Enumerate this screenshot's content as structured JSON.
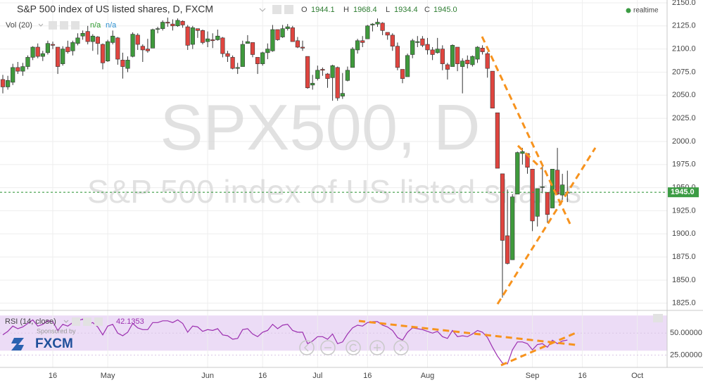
{
  "chart_data": [
    {
      "type": "candlestick",
      "title": "S&P 500 index of US listed shares, D, FXCM",
      "ohlc_names": [
        "O",
        "H",
        "L",
        "C"
      ],
      "volume_legend": {
        "label": "Vol (20)",
        "values": [
          "n/a",
          "n/a"
        ]
      },
      "status": "realtime",
      "watermark": [
        "SPX500, D",
        "S&P 500 index of US listed shares"
      ],
      "sponsor": {
        "label": "Sponsored by",
        "brand": "FXCM"
      },
      "categories": [
        null,
        null,
        null,
        null,
        null,
        null,
        null,
        null,
        null,
        null,
        "16",
        null,
        null,
        null,
        null,
        null,
        null,
        null,
        null,
        null,
        null,
        "May",
        null,
        null,
        null,
        null,
        null,
        null,
        null,
        null,
        null,
        null,
        null,
        null,
        null,
        null,
        null,
        null,
        null,
        null,
        null,
        "Jun",
        null,
        null,
        null,
        null,
        null,
        null,
        null,
        null,
        null,
        null,
        "16",
        null,
        null,
        null,
        null,
        null,
        null,
        null,
        null,
        null,
        null,
        "Jul",
        null,
        null,
        null,
        null,
        null,
        null,
        null,
        null,
        null,
        "16",
        null,
        null,
        null,
        null,
        null,
        null,
        null,
        null,
        null,
        null,
        null,
        "Aug",
        null,
        null,
        null,
        null,
        null,
        null,
        null,
        null,
        null,
        null,
        null,
        null,
        null,
        null,
        null,
        null,
        null,
        null,
        null,
        null,
        "Sep",
        null,
        null,
        null,
        null,
        null,
        null,
        null,
        null,
        null,
        "16",
        null,
        null,
        null,
        null,
        null,
        null,
        null,
        null,
        null,
        null,
        "Oct",
        null,
        null,
        null,
        null,
        null
      ],
      "open": [
        2067,
        2059,
        2064,
        2080,
        2076,
        2081,
        2091,
        2102,
        2092,
        2096,
        2105,
        2102,
        2084,
        2102,
        2098,
        2106,
        2114,
        2119,
        2108,
        2113,
        2105,
        2087,
        2107,
        2112,
        2088,
        2079,
        2092,
        2115,
        2103,
        2100,
        2101,
        2122,
        2122,
        2129,
        2127,
        2125,
        2130,
        2124,
        2105,
        2122,
        2120,
        2108,
        2110,
        2110,
        2112,
        2095,
        2091,
        2079,
        2081,
        2106,
        2107,
        2091,
        2084,
        2096,
        2098,
        2121,
        2113,
        2122,
        2123,
        2109,
        2102,
        2092,
        2061,
        2068,
        2078,
        2073,
        2069,
        2080,
        2049,
        2066,
        2080,
        2099,
        2109,
        2111,
        2126,
        2127,
        2128,
        2118,
        2115,
        2103,
        2078,
        2070,
        2094,
        2107,
        2111,
        2105,
        2099,
        2096,
        2100,
        2083,
        2081,
        2102,
        2081,
        2088,
        2083,
        2089,
        2101,
        2095,
        2076,
        2031,
        1965,
        1898,
        1872,
        1943,
        1987,
        1987,
        1970,
        1919,
        1951,
        1945,
        1928,
        1969,
        1942,
        1944.1,
        null,
        null,
        null,
        null,
        null,
        null,
        null,
        null,
        null,
        null,
        null,
        null,
        null,
        null,
        null,
        null,
        null,
        null,
        null
      ],
      "high": [
        2072,
        2071,
        2084,
        2086,
        2085,
        2093,
        2103,
        2106,
        2098,
        2109,
        2108,
        2102,
        2103,
        2109,
        2109,
        2117,
        2120,
        2125,
        2116,
        2114,
        2106,
        2110,
        2120,
        2113,
        2096,
        2092,
        2118,
        2117,
        2105,
        2111,
        2122,
        2124,
        2131,
        2134,
        2132,
        2133,
        2131,
        2126,
        2125,
        2122,
        2121,
        2119,
        2117,
        2121,
        2113,
        2098,
        2093,
        2085,
        2109,
        2115,
        2107,
        2091,
        2097,
        2106,
        2126,
        2121,
        2126,
        2127,
        2125,
        2113,
        2109,
        2092,
        2072,
        2082,
        2080,
        2074,
        2083,
        2081,
        2074,
        2081,
        2102,
        2111,
        2114,
        2126,
        2128,
        2133,
        2129,
        2118,
        2117,
        2107,
        2078,
        2095,
        2111,
        2114,
        2114,
        2112,
        2102,
        2112,
        2104,
        2085,
        2105,
        2102,
        2090,
        2093,
        2093,
        2103,
        2104,
        2097,
        2076,
        2031,
        1965,
        1948,
        1943,
        1989,
        1993,
        1987,
        1970,
        1949,
        1975,
        1945,
        1970,
        1993,
        1965,
        1968.4,
        null,
        null,
        null,
        null,
        null,
        null,
        null,
        null,
        null,
        null,
        null,
        null,
        null,
        null,
        null,
        null,
        null,
        null,
        null
      ],
      "low": [
        2052,
        2056,
        2061,
        2073,
        2071,
        2078,
        2088,
        2090,
        2087,
        2094,
        2100,
        2073,
        2082,
        2095,
        2093,
        2104,
        2110,
        2105,
        2098,
        2094,
        2078,
        2086,
        2105,
        2083,
        2068,
        2075,
        2091,
        2099,
        2086,
        2096,
        2101,
        2117,
        2120,
        2124,
        2120,
        2124,
        2123,
        2099,
        2100,
        2112,
        2105,
        2102,
        2101,
        2109,
        2091,
        2086,
        2078,
        2073,
        2081,
        2106,
        2091,
        2073,
        2082,
        2089,
        2097,
        2109,
        2112,
        2120,
        2108,
        2101,
        2098,
        2057,
        2056,
        2066,
        2071,
        2058,
        2044,
        2044,
        2046,
        2065,
        2080,
        2095,
        2102,
        2111,
        2119,
        2124,
        2115,
        2110,
        2098,
        2077,
        2063,
        2070,
        2090,
        2102,
        2102,
        2094,
        2088,
        2095,
        2077,
        2067,
        2081,
        2076,
        2052,
        2079,
        2081,
        2085,
        2094,
        2069,
        2036,
        1971,
        1831,
        1867,
        1872,
        1943,
        1975,
        1965,
        1903,
        1908,
        1944,
        1912,
        1928,
        1942,
        1937,
        1934.4,
        null,
        null,
        null,
        null,
        null,
        null,
        null,
        null,
        null,
        null,
        null,
        null,
        null,
        null,
        null,
        null,
        null,
        null,
        null
      ],
      "close": [
        2059,
        2066,
        2080,
        2076,
        2081,
        2091,
        2102,
        2092,
        2095,
        2106,
        2104,
        2081,
        2100,
        2097,
        2107,
        2112,
        2117,
        2108,
        2114,
        2106,
        2085,
        2108,
        2114,
        2089,
        2081,
        2088,
        2116,
        2105,
        2099,
        2098,
        2121,
        2122,
        2129,
        2128,
        2125,
        2131,
        2126,
        2104,
        2123,
        2120,
        2107,
        2111,
        2109,
        2114,
        2095,
        2092,
        2079,
        2080,
        2105,
        2108,
        2094,
        2084,
        2096,
        2100,
        2121,
        2110,
        2122,
        2124,
        2108,
        2102,
        2101,
        2058,
        2063,
        2077,
        2077,
        2068,
        2082,
        2047,
        2052,
        2077,
        2100,
        2109,
        2107,
        2125,
        2127,
        2129,
        2120,
        2115,
        2103,
        2080,
        2068,
        2093,
        2109,
        2108,
        2104,
        2099,
        2094,
        2100,
        2084,
        2078,
        2104,
        2084,
        2087,
        2084,
        2092,
        2102,
        2097,
        2079,
        2036,
        1971,
        1893,
        1868,
        1940,
        1988,
        1989,
        1972,
        1914,
        1949,
        1951,
        1921,
        1970,
        1943,
        1953,
        1945,
        null,
        null,
        null,
        null,
        null,
        null,
        null,
        null,
        null,
        null,
        null,
        null,
        null,
        null,
        null,
        null,
        null,
        null,
        null
      ],
      "up_color": "#3f9a3c",
      "down_color": "#e0453f",
      "last_price": {
        "value": 1945,
        "label": "1945.0",
        "color": "#3c9c44"
      },
      "ylim": [
        1818,
        2153
      ],
      "yticks": [
        {
          "value": 1825,
          "label": "1825.0"
        },
        {
          "value": 1850,
          "label": "1850.0"
        },
        {
          "value": 1875,
          "label": "1875.0"
        },
        {
          "value": 1900,
          "label": "1900.0"
        },
        {
          "value": 1925,
          "label": "1925.0"
        },
        {
          "value": 1950,
          "label": "1950.0"
        },
        {
          "value": 1975,
          "label": "1975.0"
        },
        {
          "value": 2000,
          "label": "2000.0"
        },
        {
          "value": 2025,
          "label": "2025.0"
        },
        {
          "value": 2050,
          "label": "2050.0"
        },
        {
          "value": 2075,
          "label": "2075.0"
        },
        {
          "value": 2100,
          "label": "2100.0"
        },
        {
          "value": 2125,
          "label": "2125.0"
        },
        {
          "value": 2150,
          "label": "2150.0"
        }
      ],
      "grid": true
    },
    {
      "type": "line",
      "title": "RSI (14, close)",
      "color": "#9c2fb0",
      "band": [
        30,
        70
      ],
      "band_color": "#ecdcf6",
      "values": [
        48,
        52,
        58,
        55,
        57,
        61,
        65,
        58,
        60,
        64,
        63,
        53,
        60,
        58,
        62,
        64,
        66,
        60,
        62,
        57,
        48,
        58,
        60,
        50,
        47,
        51,
        61,
        56,
        54,
        54,
        62,
        62,
        64,
        64,
        62,
        65,
        61,
        51,
        58,
        57,
        52,
        54,
        53,
        55,
        48,
        47,
        43,
        44,
        54,
        55,
        49,
        46,
        51,
        53,
        60,
        55,
        59,
        60,
        53,
        51,
        51,
        38,
        41,
        46,
        46,
        43,
        49,
        38,
        40,
        49,
        56,
        59,
        58,
        62,
        63,
        63,
        59,
        57,
        53,
        45,
        42,
        51,
        56,
        55,
        54,
        52,
        50,
        52,
        46,
        44,
        53,
        46,
        47,
        46,
        49,
        53,
        51,
        45,
        34,
        24,
        16,
        15,
        31,
        40,
        40,
        38,
        31,
        37,
        38,
        34,
        42,
        38,
        41,
        42.1353,
        null,
        null,
        null,
        null,
        null,
        null,
        null,
        null,
        null,
        null,
        null,
        null,
        null,
        null,
        null,
        null,
        null,
        null,
        null
      ],
      "ylim": [
        11,
        75
      ],
      "yticks": [
        {
          "value": 25,
          "label": "25.00000"
        },
        {
          "value": 50,
          "label": "50.00000"
        }
      ]
    }
  ]
}
